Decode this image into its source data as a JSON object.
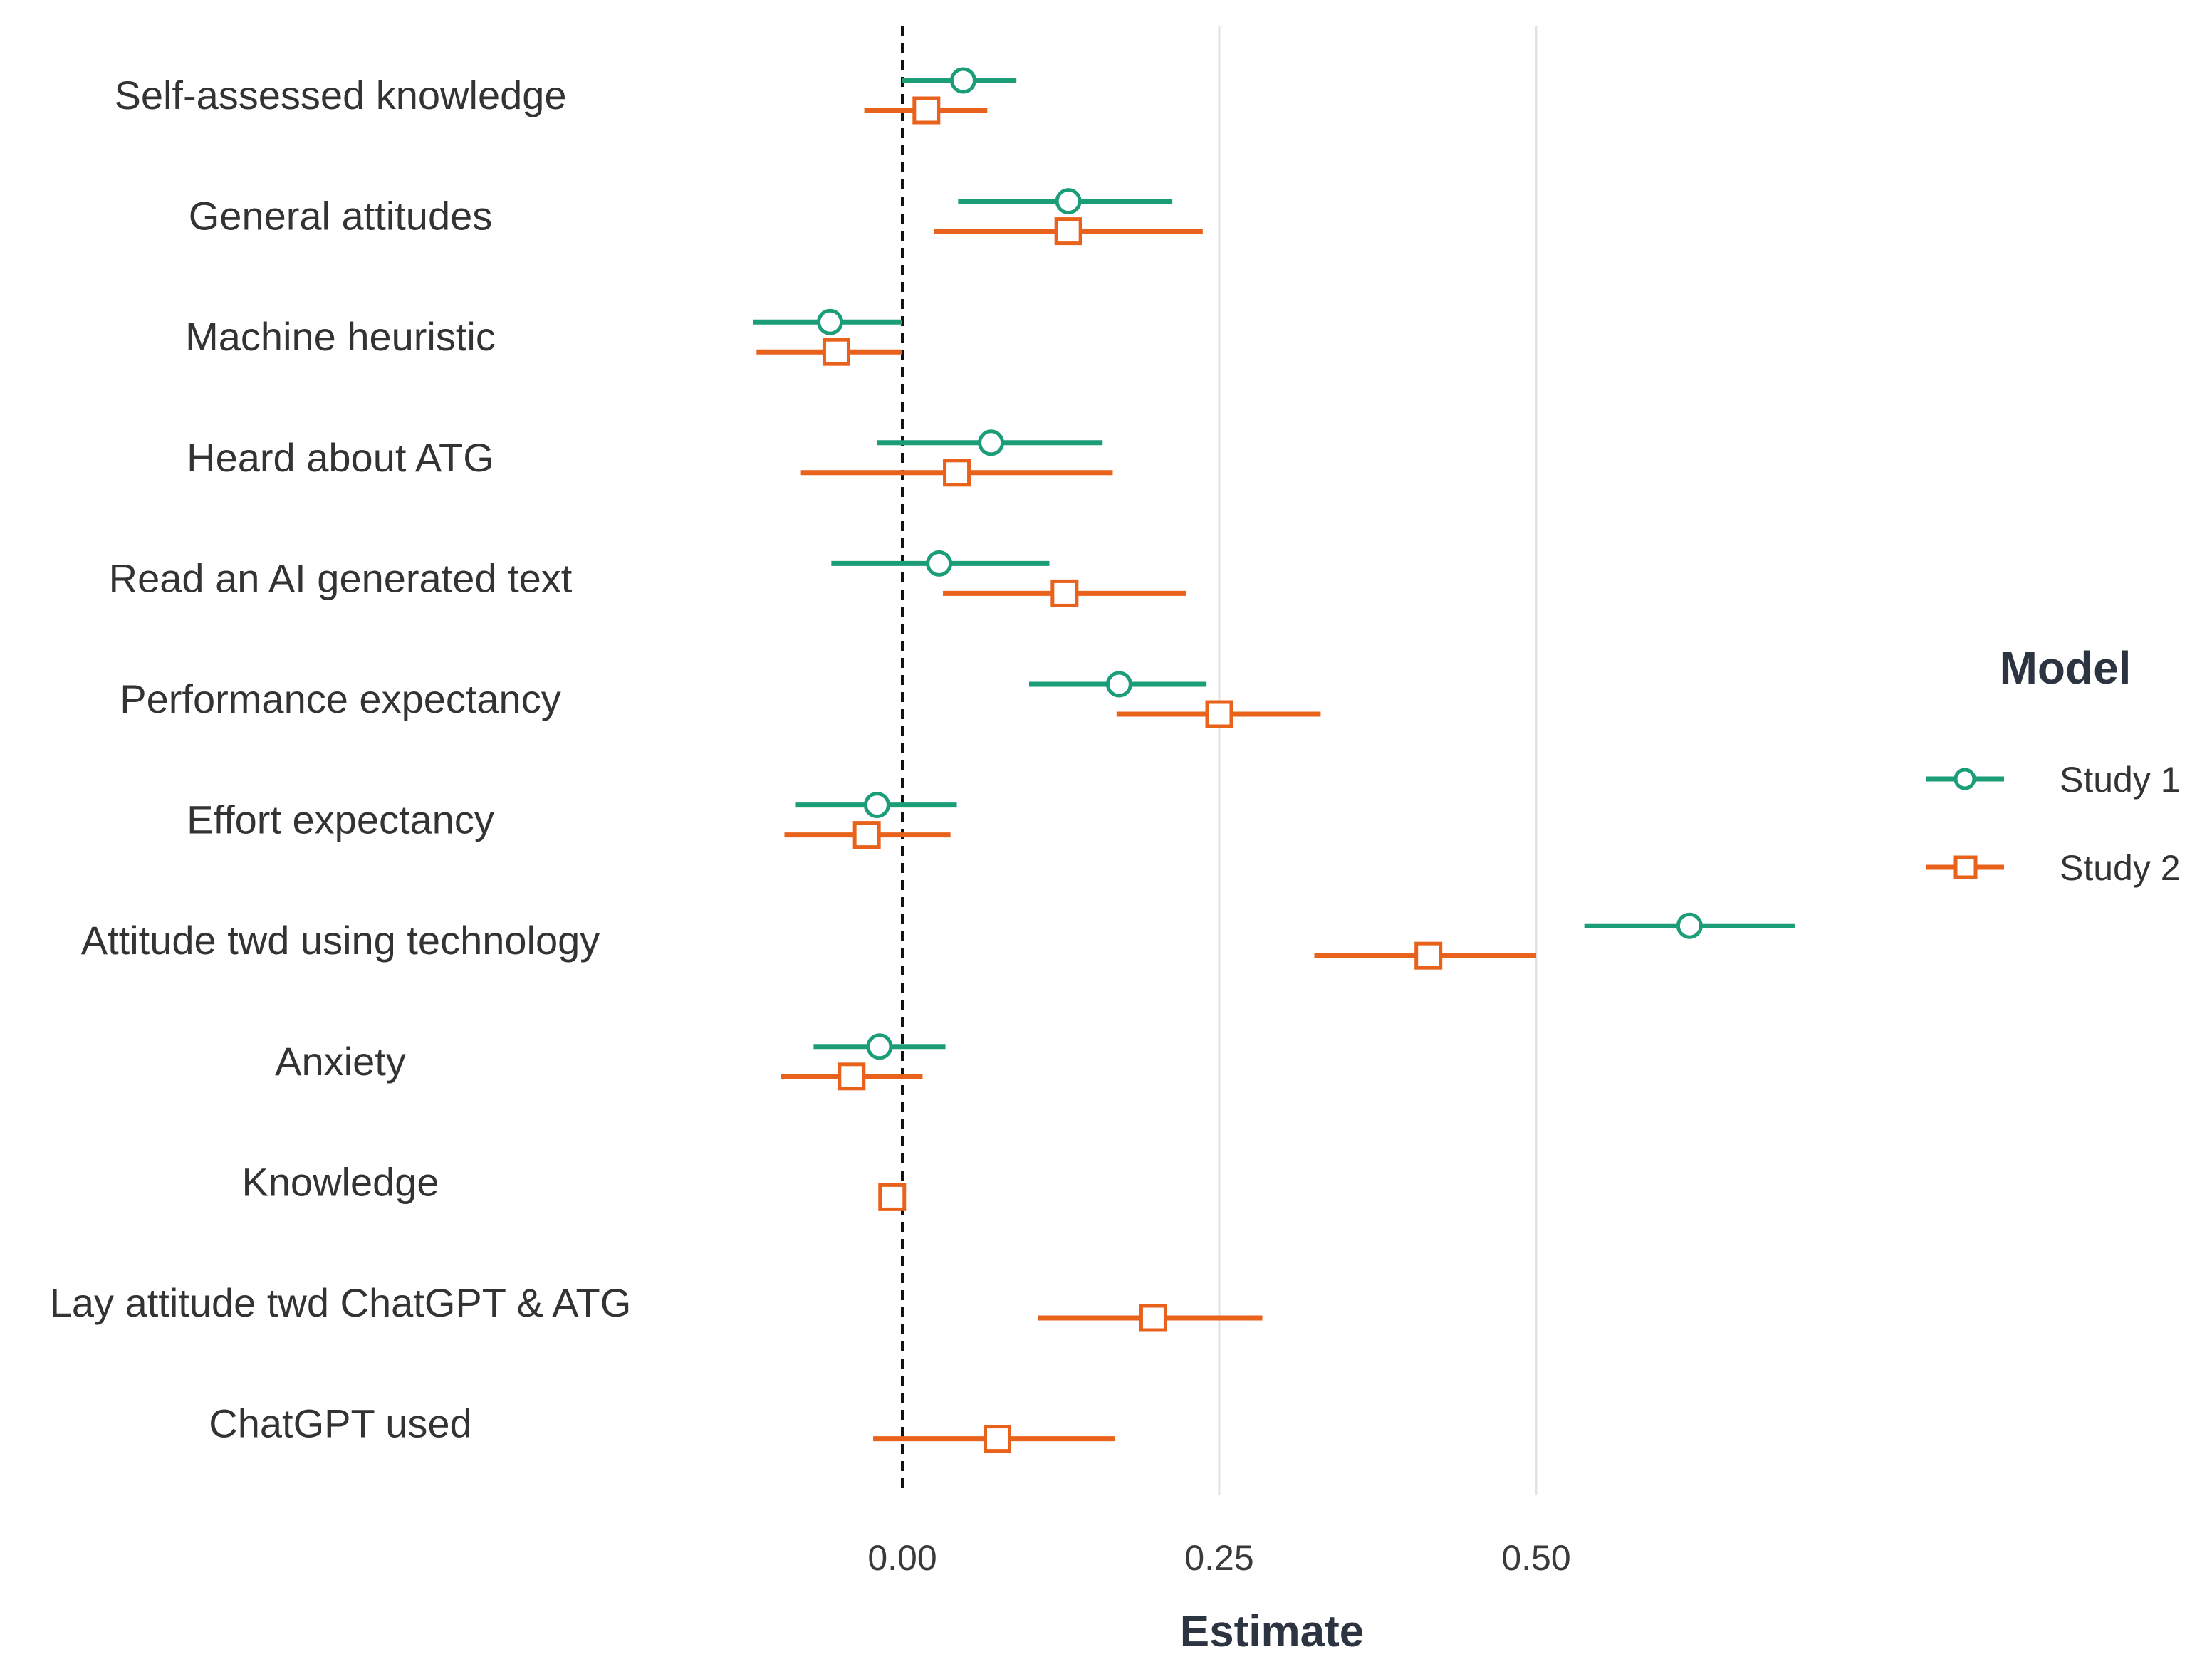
{
  "chart_data": {
    "type": "dot-whisker",
    "xlabel": "Estimate",
    "xlim": [
      -0.35,
      0.8
    ],
    "xticks": [
      0,
      0.25,
      0.5
    ],
    "xtick_labels": [
      "0.00",
      "0.25",
      "0.50"
    ],
    "reference_line": 0,
    "grid": "vertical major only",
    "legend": {
      "title": "Model",
      "position": "right",
      "entries": [
        {
          "name": "Study 1",
          "color": "#1b9e77",
          "shape": "circle"
        },
        {
          "name": "Study 2",
          "color": "#e8621c",
          "shape": "square"
        }
      ]
    },
    "categories": [
      "Self-assessed knowledge",
      "General attitudes",
      "Machine heuristic",
      "Heard about ATG",
      "Read an AI generated text",
      "Performance expectancy",
      "Effort expectancy",
      "Attitude twd using technology",
      "Anxiety",
      "Knowledge",
      "Lay attitude twd ChatGPT & ATG",
      "ChatGPT used"
    ],
    "series": [
      {
        "name": "Study 1",
        "color": "#1b9e77",
        "estimate": [
          0.048,
          0.131,
          -0.057,
          0.07,
          0.029,
          0.171,
          -0.02,
          0.621,
          -0.018,
          null,
          null,
          null
        ],
        "lower": [
          0.0,
          0.044,
          -0.118,
          -0.02,
          -0.056,
          0.1,
          -0.084,
          0.538,
          -0.07,
          null,
          null,
          null
        ],
        "upper": [
          0.09,
          0.213,
          0.0,
          0.158,
          0.116,
          0.24,
          0.043,
          0.704,
          0.034,
          null,
          null,
          null
        ]
      },
      {
        "name": "Study 2",
        "color": "#e8621c",
        "estimate": [
          0.019,
          0.131,
          -0.052,
          0.043,
          0.128,
          0.25,
          -0.028,
          0.415,
          -0.04,
          -0.008,
          0.198,
          0.075
        ],
        "lower": [
          -0.03,
          0.025,
          -0.115,
          -0.08,
          0.032,
          0.169,
          -0.093,
          0.325,
          -0.096,
          -0.018,
          0.107,
          -0.023
        ],
        "upper": [
          0.067,
          0.237,
          0.0,
          0.166,
          0.224,
          0.33,
          0.038,
          0.5,
          0.016,
          0.0,
          0.284,
          0.168
        ]
      }
    ]
  }
}
